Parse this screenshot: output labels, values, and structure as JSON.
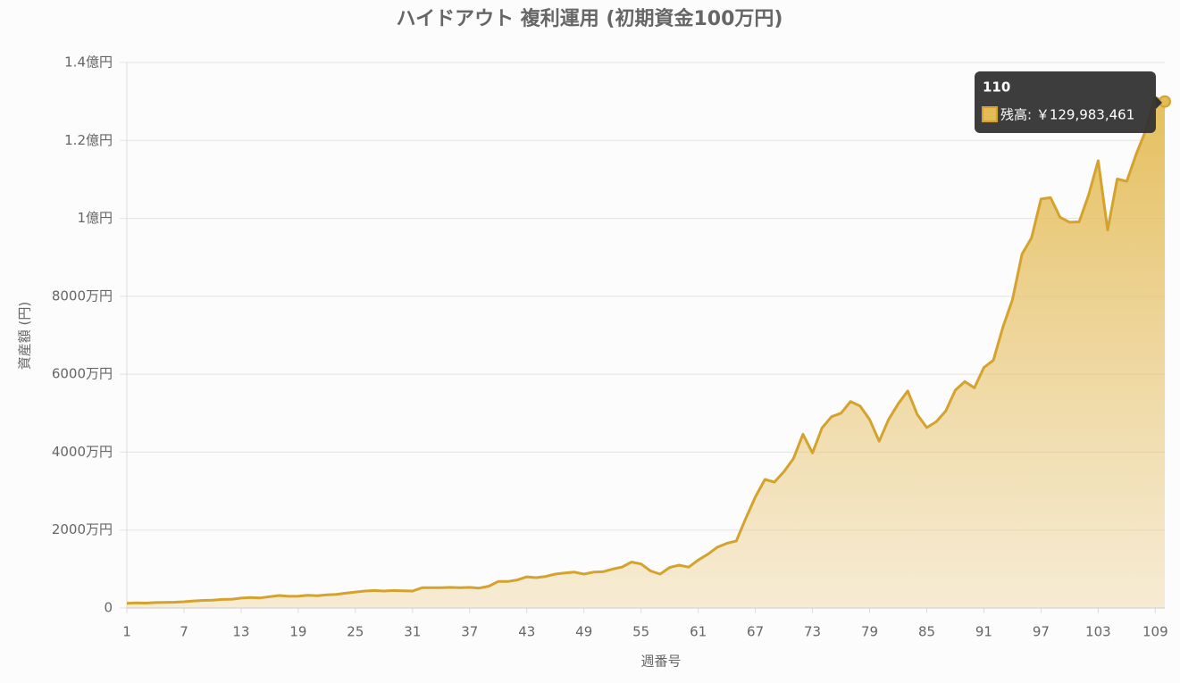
{
  "chart_data": {
    "type": "area",
    "title": "ハイドアウト 複利運用 (初期資金100万円)",
    "x_label": "週番号",
    "y_label": "資産額 (円)",
    "x": [
      1,
      2,
      3,
      4,
      5,
      6,
      7,
      8,
      9,
      10,
      11,
      12,
      13,
      14,
      15,
      16,
      17,
      18,
      19,
      20,
      21,
      22,
      23,
      24,
      25,
      26,
      27,
      28,
      29,
      30,
      31,
      32,
      33,
      34,
      35,
      36,
      37,
      38,
      39,
      40,
      41,
      42,
      43,
      44,
      45,
      46,
      47,
      48,
      49,
      50,
      51,
      52,
      53,
      54,
      55,
      56,
      57,
      58,
      59,
      60,
      61,
      62,
      63,
      64,
      65,
      66,
      67,
      68,
      69,
      70,
      71,
      72,
      73,
      74,
      75,
      76,
      77,
      78,
      79,
      80,
      81,
      82,
      83,
      84,
      85,
      86,
      87,
      88,
      89,
      90,
      91,
      92,
      93,
      94,
      95,
      96,
      97,
      98,
      99,
      100,
      101,
      102,
      103,
      104,
      105,
      106,
      107,
      108,
      109,
      110
    ],
    "xlim": [
      1,
      110
    ],
    "xticks": [
      1,
      7,
      13,
      19,
      25,
      31,
      37,
      43,
      49,
      55,
      61,
      67,
      73,
      79,
      85,
      91,
      97,
      103,
      109
    ],
    "series": [
      {
        "name": "残高",
        "color": "#d4a32e",
        "values": [
          1200000,
          1300000,
          1250000,
          1400000,
          1450000,
          1500000,
          1600000,
          1800000,
          1950000,
          2000000,
          2200000,
          2250000,
          2550000,
          2700000,
          2600000,
          2900000,
          3200000,
          3000000,
          3050000,
          3250000,
          3150000,
          3400000,
          3500000,
          3800000,
          4100000,
          4350000,
          4500000,
          4350000,
          4500000,
          4400000,
          4350000,
          5200000,
          5200000,
          5200000,
          5300000,
          5200000,
          5300000,
          5100000,
          5600000,
          6800000,
          6800000,
          7200000,
          8000000,
          7800000,
          8100000,
          8700000,
          9000000,
          9200000,
          8700000,
          9200000,
          9300000,
          10000000,
          10500000,
          11800000,
          11300000,
          9500000,
          8700000,
          10400000,
          11000000,
          10500000,
          12300000,
          13800000,
          15600000,
          16600000,
          17200000,
          23000000,
          28500000,
          33000000,
          32300000,
          35000000,
          38300000,
          44600000,
          39800000,
          46200000,
          49100000,
          50000000,
          53000000,
          51800000,
          48400000,
          42800000,
          48400000,
          52400000,
          55700000,
          49700000,
          46300000,
          47800000,
          50600000,
          55900000,
          58100000,
          56500000,
          61700000,
          63600000,
          72100000,
          79100000,
          90800000,
          95000000,
          105000000,
          105300000,
          100300000,
          99000000,
          99100000,
          106000000,
          114800000,
          97000000,
          110100000,
          109500000,
          116500000,
          122600000,
          131000000,
          129983461
        ]
      }
    ],
    "ylim": [
      0,
      140000000
    ],
    "yticks": [
      0,
      {
        "value": 20000000,
        "label": "2000万円"
      },
      {
        "value": 40000000,
        "label": "4000万円"
      },
      {
        "value": 60000000,
        "label": "6000万円"
      },
      {
        "value": 80000000,
        "label": "8000万円"
      },
      {
        "value": 100000000,
        "label": "1億円"
      },
      {
        "value": 120000000,
        "label": "1.2億円"
      },
      {
        "value": 140000000,
        "label": "1.4億円"
      }
    ],
    "grid": true,
    "tooltip": {
      "title": "110",
      "label": "残高: ￥129,983,461"
    }
  }
}
